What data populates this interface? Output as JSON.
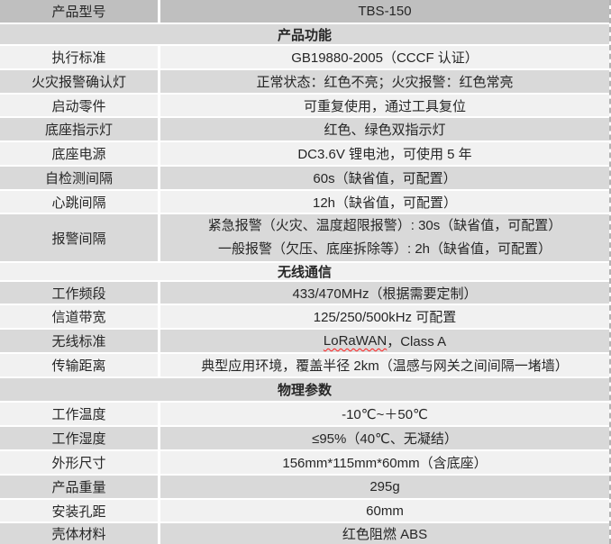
{
  "table": {
    "title_semantic": "product-specification-table",
    "colors": {
      "first_row_bg": "#bfbfbf",
      "gray_row_bg": "#d9d9d9",
      "light_row_bg": "#f1f1f1",
      "separator": "#ffffff",
      "text": "#262626",
      "spellcheck_squiggle": "#ff1f1f",
      "right_edge_dash": "#b3b3b3"
    },
    "rows": [
      {
        "type": "kv",
        "label": "产品型号",
        "value": "TBS-150"
      },
      {
        "type": "section",
        "label": "产品功能"
      },
      {
        "type": "kv",
        "label": "执行标准",
        "value": "GB19880-2005（CCCF 认证）"
      },
      {
        "type": "kv",
        "label": "火灾报警确认灯",
        "value": "正常状态：红色不亮；火灾报警：红色常亮"
      },
      {
        "type": "kv",
        "label": "启动零件",
        "value": "可重复使用，通过工具复位"
      },
      {
        "type": "kv",
        "label": "底座指示灯",
        "value": "红色、绿色双指示灯"
      },
      {
        "type": "kv",
        "label": "底座电源",
        "value": "DC3.6V 锂电池，可使用 5 年"
      },
      {
        "type": "kv",
        "label": "自检测间隔",
        "value": "60s（缺省值，可配置）"
      },
      {
        "type": "kv",
        "label": "心跳间隔",
        "value": "12h（缺省值，可配置）"
      },
      {
        "type": "kv-multi",
        "label": "报警间隔",
        "lines": [
          "紧急报警（火灾、温度超限报警）: 30s（缺省值，可配置）",
          "一般报警（欠压、底座拆除等）: 2h（缺省值，可配置）"
        ]
      },
      {
        "type": "section",
        "label": "无线通信"
      },
      {
        "type": "kv",
        "label": "工作频段",
        "value": "433/470MHz（根据需要定制）"
      },
      {
        "type": "kv",
        "label": "信道带宽",
        "value": "125/250/500kHz 可配置"
      },
      {
        "type": "kv-parts",
        "label": "无线标准",
        "parts": [
          {
            "text": "LoRaWAN",
            "spellcheck_flagged": true
          },
          {
            "text": "，Class A",
            "spellcheck_flagged": false
          }
        ]
      },
      {
        "type": "kv",
        "label": "传输距离",
        "value": "典型应用环境，覆盖半径 2km（温感与网关之间间隔一堵墙）"
      },
      {
        "type": "section",
        "label": "物理参数"
      },
      {
        "type": "kv",
        "label": "工作温度",
        "value": "-10℃~＋50℃"
      },
      {
        "type": "kv",
        "label": "工作湿度",
        "value": "≤95%（40℃、无凝结）"
      },
      {
        "type": "kv",
        "label": "外形尺寸",
        "value": "156mm*115mm*60mm（含底座）"
      },
      {
        "type": "kv",
        "label": "产品重量",
        "value": "295g"
      },
      {
        "type": "kv",
        "label": "安装孔距",
        "value": "60mm"
      },
      {
        "type": "kv",
        "label": "壳体材料",
        "value": "红色阻燃 ABS"
      }
    ]
  }
}
